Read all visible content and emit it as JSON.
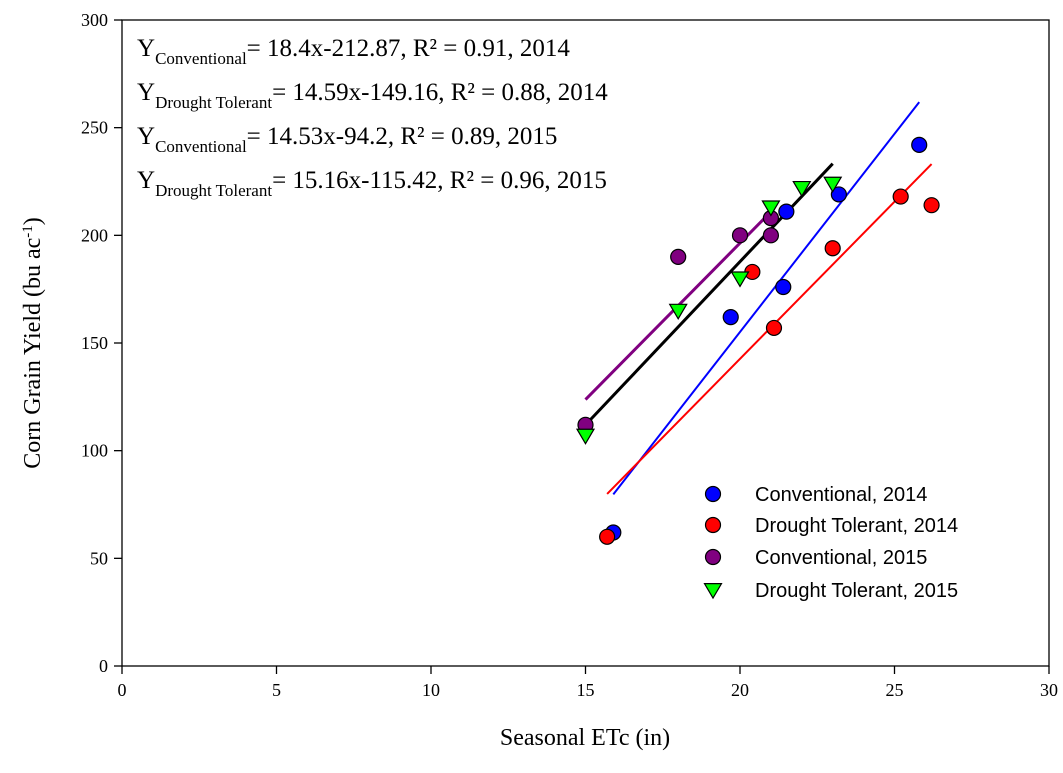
{
  "chart_data": {
    "type": "scatter",
    "xlabel": "Seasonal ETc (in)",
    "ylabel_main": "Corn Grain Yield (bu ac",
    "ylabel_sup": "-1",
    "ylabel_end": ")",
    "xlim": [
      0,
      30
    ],
    "ylim": [
      0,
      300
    ],
    "xticks": [
      0,
      5,
      10,
      15,
      20,
      25,
      30
    ],
    "yticks": [
      0,
      50,
      100,
      150,
      200,
      250,
      300
    ],
    "grid": false,
    "legend_position": "bottom-right",
    "series": [
      {
        "name": "Conventional, 2014",
        "marker": "circle",
        "color": "#0000ff",
        "line_color": "#0000ff",
        "points": [
          [
            15.9,
            62
          ],
          [
            19.7,
            162
          ],
          [
            21.4,
            176
          ],
          [
            21.5,
            211
          ],
          [
            23.2,
            219
          ],
          [
            25.8,
            242
          ]
        ],
        "fit": {
          "x": [
            15.9,
            25.8
          ]
        }
      },
      {
        "name": "Drought Tolerant, 2014",
        "marker": "circle",
        "color": "#ff0000",
        "line_color": "#ff0000",
        "points": [
          [
            15.7,
            60
          ],
          [
            20.4,
            183
          ],
          [
            21.1,
            157
          ],
          [
            23.0,
            194
          ],
          [
            25.2,
            218
          ],
          [
            26.2,
            214
          ]
        ],
        "fit": {
          "x": [
            15.7,
            26.2
          ]
        }
      },
      {
        "name": "Conventional, 2015",
        "marker": "circle",
        "color": "#800080",
        "line_color": "#800080",
        "points": [
          [
            15.0,
            112
          ],
          [
            18.0,
            190
          ],
          [
            20.0,
            200
          ],
          [
            21.0,
            200
          ],
          [
            21.0,
            208
          ]
        ],
        "fit": {
          "x": [
            15.0,
            21.0
          ]
        }
      },
      {
        "name": "Drought Tolerant, 2015",
        "marker": "triangle-down",
        "color": "#00ff00",
        "line_color": "#000000",
        "points": [
          [
            15.0,
            107
          ],
          [
            18.0,
            165
          ],
          [
            20.0,
            180
          ],
          [
            21.0,
            213
          ],
          [
            22.0,
            222
          ],
          [
            23.0,
            224
          ]
        ],
        "fit": {
          "x": [
            15.0,
            23.0
          ]
        }
      }
    ],
    "equations": [
      {
        "main": "Y",
        "sub": "Conventional",
        "rest": "=  18.4x-212.87, R² = 0.91, 2014",
        "slope": 18.4,
        "intercept": -212.87
      },
      {
        "main": "Y",
        "sub": "Drought Tolerant",
        "rest": "= 14.59x-149.16, R² = 0.88, 2014",
        "slope": 14.59,
        "intercept": -149.16
      },
      {
        "main": "Y",
        "sub": "Conventional",
        "rest": "=  14.53x-94.2, R² = 0.89, 2015",
        "slope": 14.53,
        "intercept": -94.2
      },
      {
        "main": "Y",
        "sub": "Drought Tolerant",
        "rest": "= 15.16x-115.42, R² = 0.96, 2015",
        "slope": 15.16,
        "intercept": -115.42
      }
    ]
  }
}
